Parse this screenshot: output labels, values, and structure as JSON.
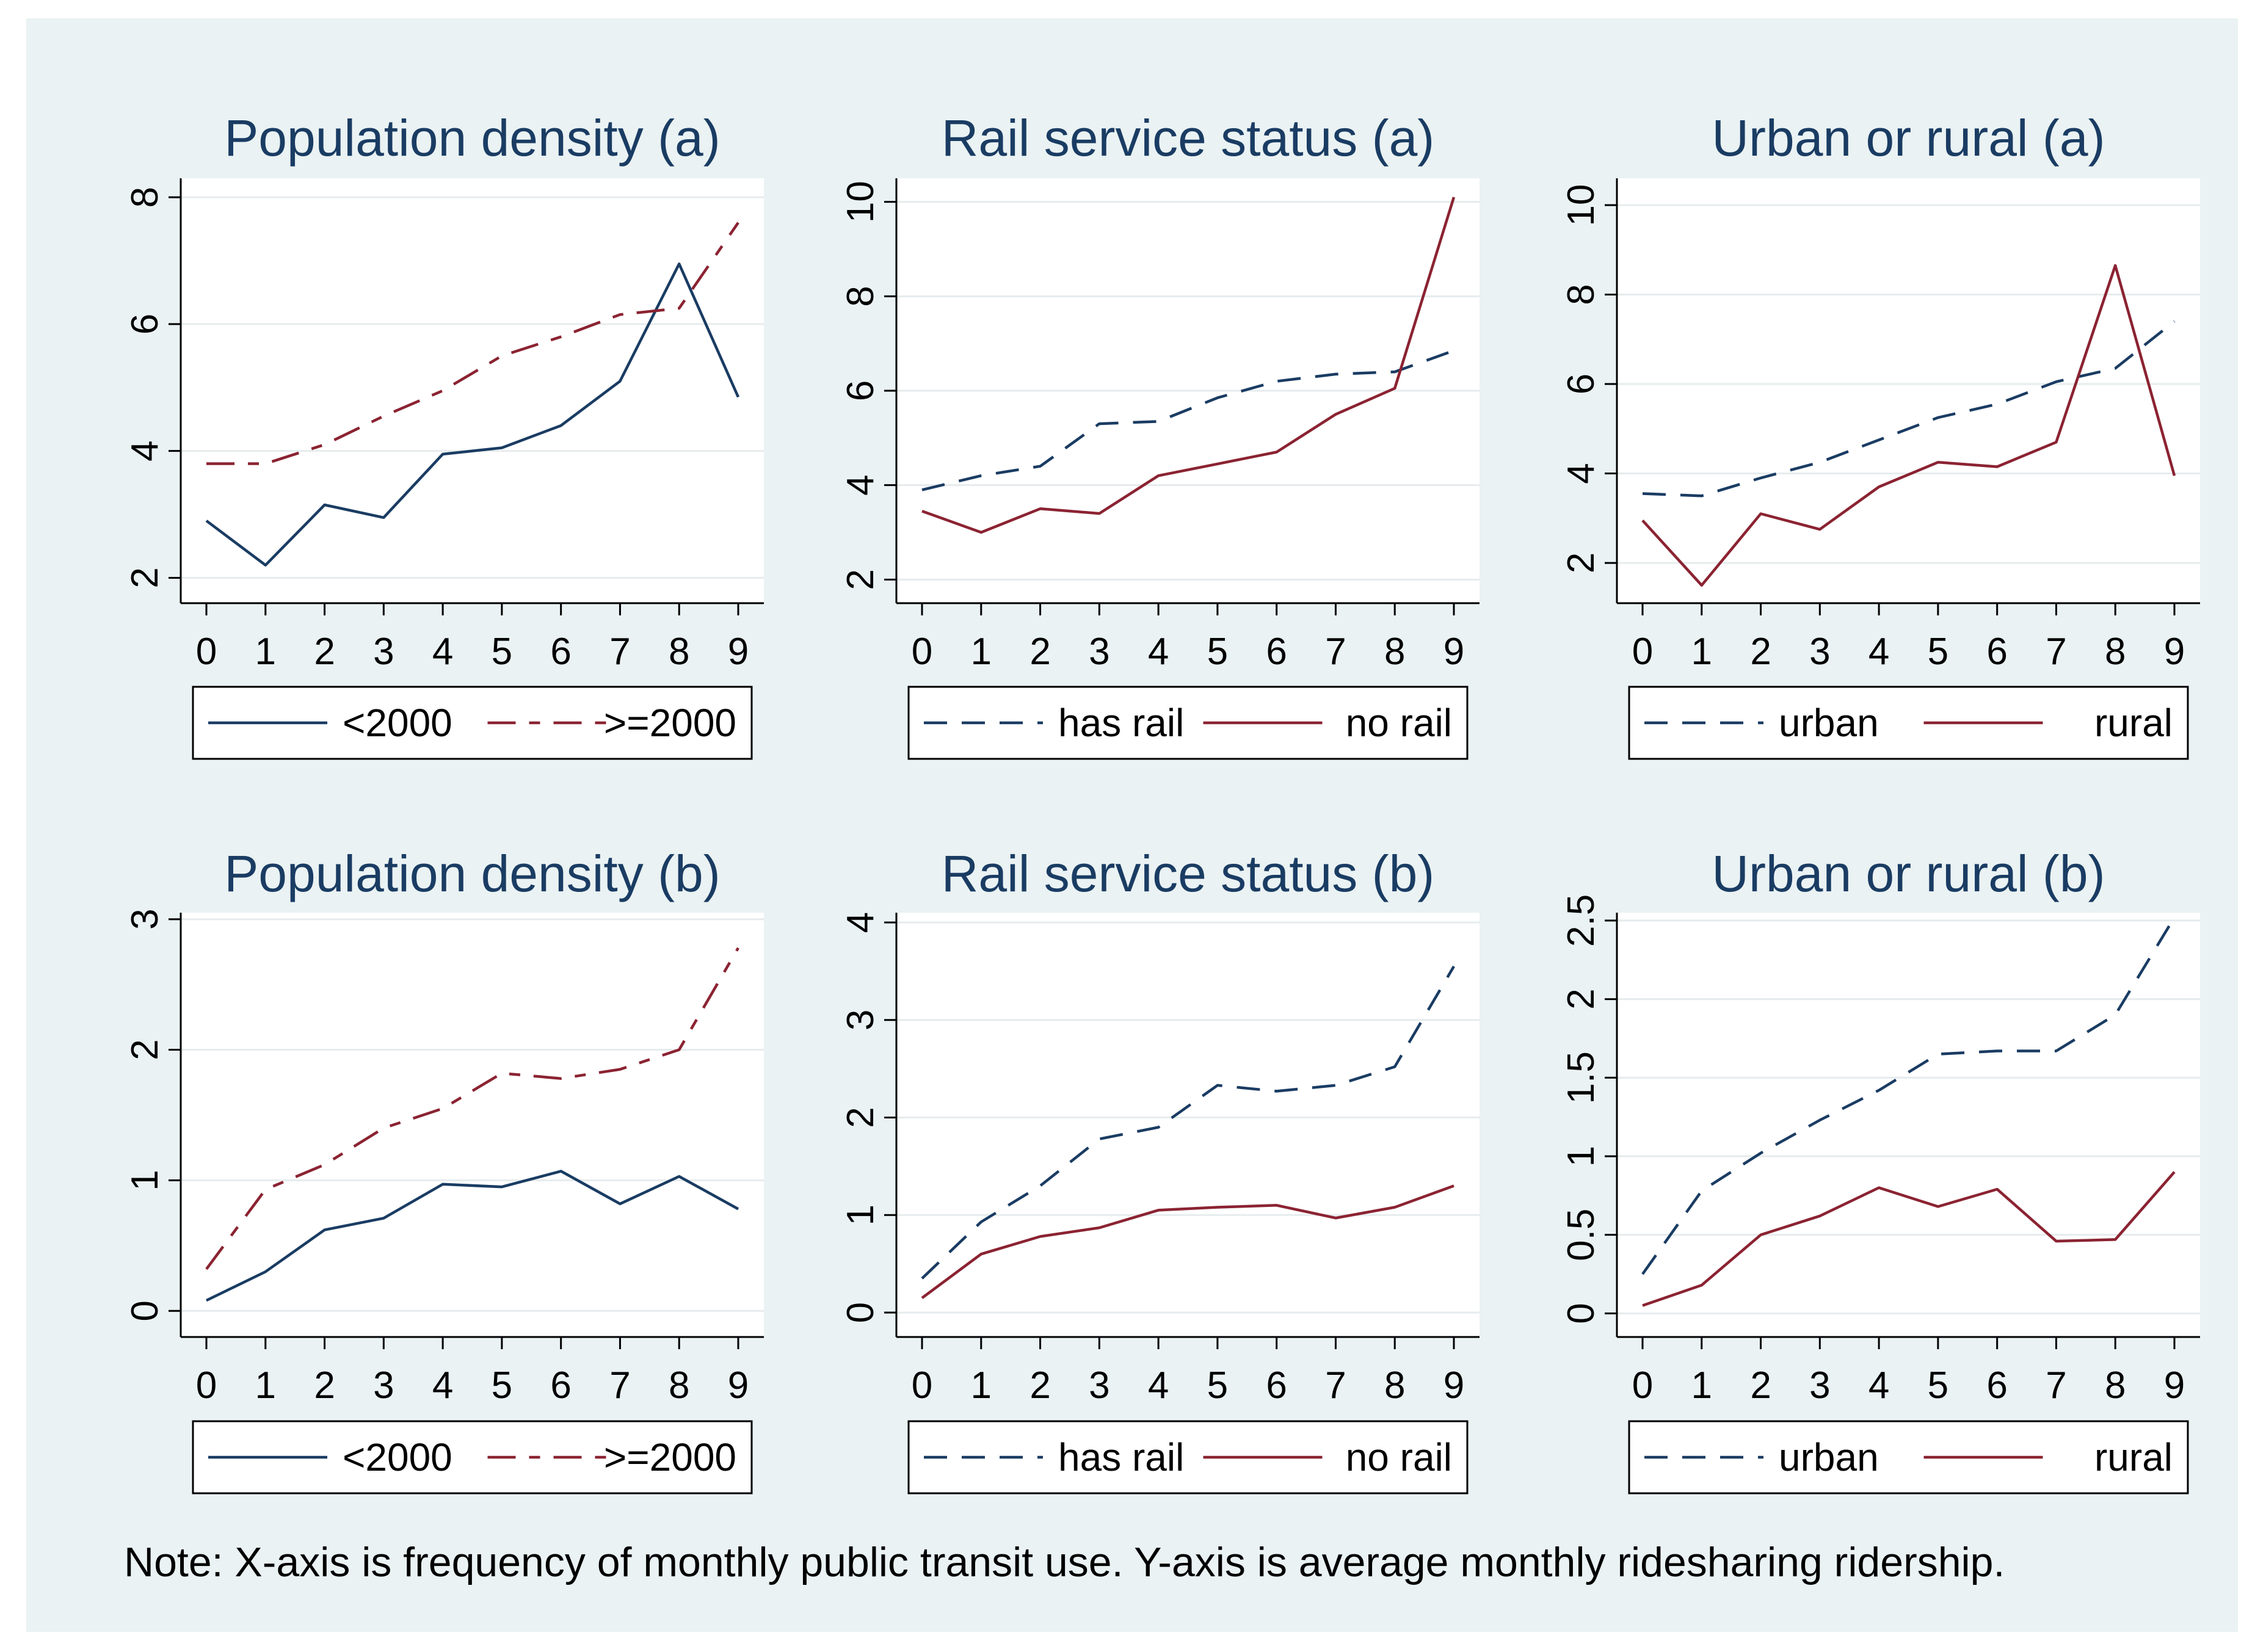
{
  "colors": {
    "background": "#eaf2f3",
    "plot": "#ffffff",
    "navy": "#1a3c63",
    "maroon": "#8b2332",
    "grid": "#e6eced"
  },
  "note": "Note: X-axis is frequency of monthly public transit use. Y-axis is average monthly ridesharing ridership.",
  "chart_data": [
    {
      "type": "line",
      "title": "Population density (a)",
      "xlabel": "",
      "ylabel": "",
      "x": [
        0,
        1,
        2,
        3,
        4,
        5,
        6,
        7,
        8,
        9
      ],
      "ylim": [
        1.6,
        8.3
      ],
      "yticks": [
        "2",
        "4",
        "6",
        "8"
      ],
      "ytick_values": [
        2,
        4,
        6,
        8
      ],
      "series": [
        {
          "name": "<2000",
          "color": "#1a3c63",
          "dash": "solid",
          "values": [
            2.9,
            2.2,
            3.15,
            2.95,
            3.95,
            4.05,
            4.4,
            5.1,
            6.95,
            4.85
          ]
        },
        {
          "name": ">=2000",
          "color": "#8b2332",
          "dash": "longdash",
          "values": [
            3.8,
            3.8,
            4.1,
            4.55,
            4.95,
            5.5,
            5.8,
            6.15,
            6.25,
            7.6
          ]
        }
      ]
    },
    {
      "type": "line",
      "title": "Rail service status (a)",
      "xlabel": "",
      "ylabel": "",
      "x": [
        0,
        1,
        2,
        3,
        4,
        5,
        6,
        7,
        8,
        9
      ],
      "ylim": [
        1.5,
        10.5
      ],
      "yticks": [
        "2",
        "4",
        "6",
        "8",
        "10"
      ],
      "ytick_values": [
        2,
        4,
        6,
        8,
        10
      ],
      "series": [
        {
          "name": "has rail",
          "color": "#1a3c63",
          "dash": "dashed",
          "values": [
            3.9,
            4.2,
            4.4,
            5.3,
            5.35,
            5.85,
            6.2,
            6.35,
            6.4,
            6.85
          ]
        },
        {
          "name": "no rail",
          "color": "#8b2332",
          "dash": "solid",
          "values": [
            3.45,
            3.0,
            3.5,
            3.4,
            4.2,
            4.45,
            4.7,
            5.5,
            6.05,
            10.1
          ]
        }
      ]
    },
    {
      "type": "line",
      "title": "Urban or rural (a)",
      "xlabel": "",
      "ylabel": "",
      "x": [
        0,
        1,
        2,
        3,
        4,
        5,
        6,
        7,
        8,
        9
      ],
      "ylim": [
        1.1,
        10.6
      ],
      "yticks": [
        "2",
        "4",
        "6",
        "8",
        "10"
      ],
      "ytick_values": [
        2,
        4,
        6,
        8,
        10
      ],
      "series": [
        {
          "name": "urban",
          "color": "#1a3c63",
          "dash": "dashed",
          "values": [
            3.55,
            3.5,
            3.9,
            4.25,
            4.75,
            5.25,
            5.55,
            6.05,
            6.35,
            7.4
          ]
        },
        {
          "name": "rural",
          "color": "#8b2332",
          "dash": "solid",
          "values": [
            2.95,
            1.5,
            3.1,
            2.75,
            3.7,
            4.25,
            4.15,
            4.7,
            8.65,
            3.95
          ]
        }
      ]
    },
    {
      "type": "line",
      "title": "Population density (b)",
      "xlabel": "",
      "ylabel": "",
      "x": [
        0,
        1,
        2,
        3,
        4,
        5,
        6,
        7,
        8,
        9
      ],
      "ylim": [
        -0.2,
        3.05
      ],
      "yticks": [
        "0",
        "1",
        "2",
        "3"
      ],
      "ytick_values": [
        0,
        1,
        2,
        3
      ],
      "series": [
        {
          "name": "<2000",
          "color": "#1a3c63",
          "dash": "solid",
          "values": [
            0.08,
            0.3,
            0.62,
            0.71,
            0.97,
            0.95,
            1.07,
            0.82,
            1.03,
            0.78
          ]
        },
        {
          "name": ">=2000",
          "color": "#8b2332",
          "dash": "longdash",
          "values": [
            0.32,
            0.93,
            1.12,
            1.4,
            1.55,
            1.82,
            1.78,
            1.85,
            2.0,
            2.78
          ]
        }
      ]
    },
    {
      "type": "line",
      "title": "Rail service status (b)",
      "xlabel": "",
      "ylabel": "",
      "x": [
        0,
        1,
        2,
        3,
        4,
        5,
        6,
        7,
        8,
        9
      ],
      "ylim": [
        -0.25,
        4.1
      ],
      "yticks": [
        "0",
        "1",
        "2",
        "3",
        "4"
      ],
      "ytick_values": [
        0,
        1,
        2,
        3,
        4
      ],
      "series": [
        {
          "name": "has rail",
          "color": "#1a3c63",
          "dash": "dashed",
          "values": [
            0.35,
            0.93,
            1.3,
            1.78,
            1.9,
            2.33,
            2.27,
            2.33,
            2.52,
            3.55
          ]
        },
        {
          "name": "no rail",
          "color": "#8b2332",
          "dash": "solid",
          "values": [
            0.15,
            0.6,
            0.78,
            0.87,
            1.05,
            1.08,
            1.1,
            0.97,
            1.08,
            1.3
          ]
        }
      ]
    },
    {
      "type": "line",
      "title": "Urban or rural (b)",
      "xlabel": "",
      "ylabel": "",
      "x": [
        0,
        1,
        2,
        3,
        4,
        5,
        6,
        7,
        8,
        9
      ],
      "ylim": [
        -0.15,
        2.55
      ],
      "yticks": [
        "0",
        "0.5",
        "1",
        "1.5",
        "2",
        "2.5"
      ],
      "ytick_values": [
        0,
        0.5,
        1,
        1.5,
        2,
        2.5
      ],
      "series": [
        {
          "name": "urban",
          "color": "#1a3c63",
          "dash": "dashed",
          "values": [
            0.25,
            0.78,
            1.02,
            1.23,
            1.42,
            1.65,
            1.67,
            1.67,
            1.9,
            2.52
          ]
        },
        {
          "name": "rural",
          "color": "#8b2332",
          "dash": "solid",
          "values": [
            0.05,
            0.18,
            0.5,
            0.62,
            0.8,
            0.68,
            0.79,
            0.46,
            0.47,
            0.9
          ]
        }
      ]
    }
  ]
}
